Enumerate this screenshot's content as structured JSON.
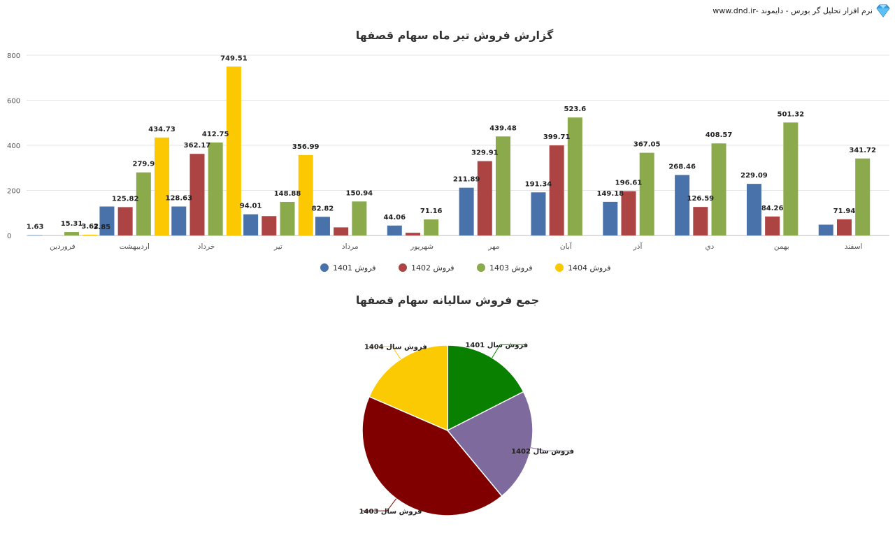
{
  "brand": {
    "text": "نرم افزار تحلیل گر بورس - دایموند -www.dnd.ir",
    "icon": "diamond-icon"
  },
  "chart_data": [
    {
      "type": "bar",
      "title": "گزارش فروش تیر ماه سهام قصفها",
      "categories": [
        "فروردین",
        "اردیبهشت",
        "خرداد",
        "تیر",
        "مرداد",
        "شهریور",
        "مهر",
        "آبان",
        "آذر",
        "دي",
        "بهمن",
        "اسفند"
      ],
      "ylim": [
        0,
        800
      ],
      "yticks": [
        0,
        200,
        400,
        600,
        800
      ],
      "grid": true,
      "legend_position": "bottom",
      "series": [
        {
          "name": "فروش 1401",
          "color": "#4a72aa",
          "values": [
            1.63,
            128.63,
            128.63,
            94.01,
            82.82,
            44.06,
            211.89,
            191.34,
            149.18,
            268.46,
            229.09,
            48
          ],
          "labels": [
            "1.63",
            null,
            "128.63",
            "94.01",
            "82.82",
            "44.06",
            "211.89",
            "191.34",
            "149.18",
            "268.46",
            "229.09",
            null
          ]
        },
        {
          "name": "فروش 1402",
          "color": "#ad4444",
          "values": [
            0,
            125.82,
            362.17,
            86,
            36,
            12,
            329.91,
            399.71,
            196.61,
            126.59,
            84.26,
            71.94
          ],
          "labels": [
            null,
            "125.82",
            "362.17",
            null,
            null,
            null,
            "329.91",
            "399.71",
            "196.61",
            "126.59",
            "84.26",
            "71.94"
          ]
        },
        {
          "name": "فروش 1403",
          "color": "#8aaa4c",
          "values": [
            15.31,
            279.9,
            412.75,
            148.88,
            150.94,
            71.16,
            439.48,
            523.6,
            367.05,
            408.57,
            501.32,
            341.72
          ],
          "labels": [
            "15.31",
            "279.9",
            "412.75",
            "148.88",
            "150.94",
            "71.16",
            "439.48",
            "523.6",
            "367.05",
            "408.57",
            "501.32",
            "341.72"
          ]
        },
        {
          "name": "فروش 1404",
          "color": "#fcc801",
          "values": [
            3.62,
            434.73,
            749.51,
            356.99,
            null,
            null,
            null,
            null,
            null,
            null,
            null,
            null
          ],
          "labels": [
            "3.62",
            "434.73",
            "749.51",
            "356.99",
            null,
            null,
            null,
            null,
            null,
            null,
            null,
            null
          ]
        }
      ],
      "extra_labels": [
        {
          "text": "3.85",
          "category": "فروردین"
        }
      ]
    },
    {
      "type": "pie",
      "title": "جمع فروش سالیانه سهام قصفها",
      "slices": [
        {
          "name": "فروش سال 1401",
          "value": 17.5,
          "color": "#0a8000"
        },
        {
          "name": "فروش سال 1402",
          "value": 21.5,
          "color": "#7f6a9d"
        },
        {
          "name": "فروش سال 1403",
          "value": 42.5,
          "color": "#800000"
        },
        {
          "name": "فروش سال 1404",
          "value": 18.5,
          "color": "#fbca03"
        }
      ]
    }
  ]
}
